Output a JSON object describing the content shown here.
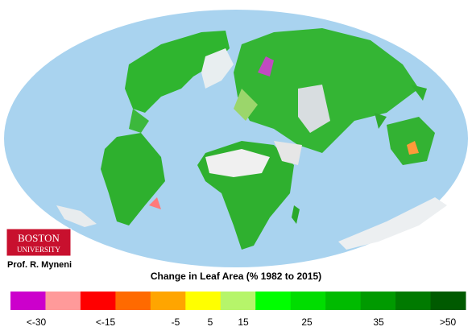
{
  "logo": {
    "line1": "BOSTON",
    "line2": "UNIVERSITY"
  },
  "author": "Prof. R. Myneni",
  "legend": {
    "title": "Change in Leaf Area (% 1982 to 2015)",
    "colors": [
      "#cc00cc",
      "#ff9a9a",
      "#ff0000",
      "#ff6a00",
      "#ffa500",
      "#ffff00",
      "#b6f56a",
      "#00ff00",
      "#00dd00",
      "#00bb00",
      "#009a00",
      "#007a00",
      "#005a00"
    ],
    "labels": [
      "<-30",
      "<-15",
      "-5",
      "5",
      "15",
      "25",
      "35",
      ">50"
    ]
  }
}
